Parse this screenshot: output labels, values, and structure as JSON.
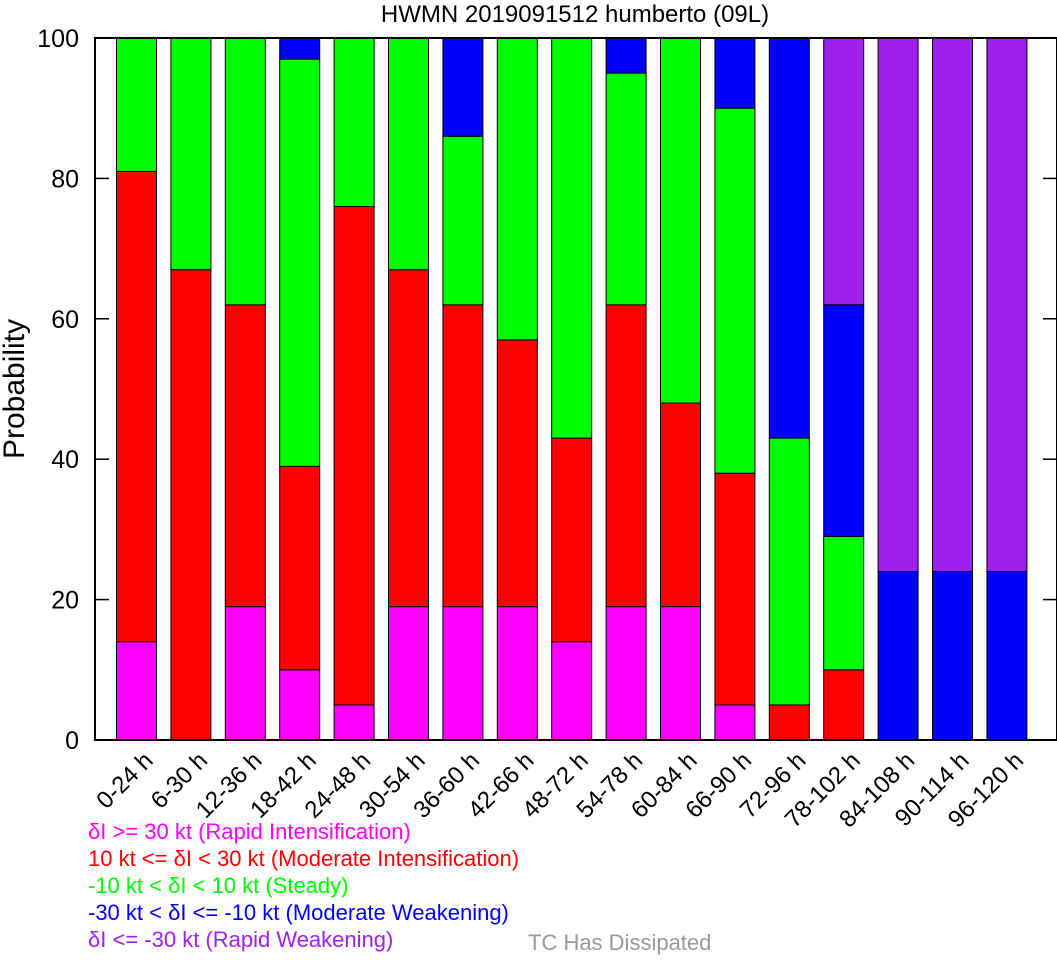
{
  "chart_data": {
    "type": "bar",
    "stacked": true,
    "title": "HWMN 2019091512 humberto (09L)",
    "ylabel": "Probability",
    "xlabel": "",
    "ylim": [
      0,
      100
    ],
    "yticks": [
      0,
      20,
      40,
      60,
      80,
      100
    ],
    "grid": false,
    "categories": [
      "0-24 h",
      "6-30 h",
      "12-36 h",
      "18-42 h",
      "24-48 h",
      "30-54 h",
      "36-60 h",
      "42-66 h",
      "48-72 h",
      "54-78 h",
      "60-84 h",
      "66-90 h",
      "72-96 h",
      "78-102 h",
      "84-108 h",
      "90-114 h",
      "96-120 h"
    ],
    "series": [
      {
        "name": "δI >= 30 kt (Rapid Intensification)",
        "color": "#ff00ff",
        "values": [
          14,
          0,
          19,
          10,
          5,
          19,
          19,
          19,
          14,
          19,
          19,
          5,
          0,
          0,
          0,
          0,
          0
        ]
      },
      {
        "name": "10 kt <= δI < 30 kt (Moderate Intensification)",
        "color": "#ff0000",
        "values": [
          67,
          67,
          43,
          29,
          71,
          48,
          43,
          38,
          29,
          43,
          29,
          33,
          5,
          10,
          0,
          0,
          0
        ]
      },
      {
        "name": "-10 kt < δI < 10 kt (Steady)",
        "color": "#00ff00",
        "values": [
          19,
          33,
          38,
          58,
          24,
          33,
          24,
          43,
          57,
          33,
          52,
          52,
          38,
          19,
          0,
          0,
          0
        ]
      },
      {
        "name": "-30 kt < δI <= -10 kt (Moderate Weakening)",
        "color": "#0000ff",
        "values": [
          0,
          0,
          0,
          3,
          0,
          0,
          14,
          0,
          0,
          5,
          0,
          10,
          57,
          33,
          24,
          24,
          24
        ]
      },
      {
        "name": "δI <= -30 kt (Rapid Weakening)",
        "color": "#a020f0",
        "values": [
          0,
          0,
          0,
          0,
          0,
          0,
          0,
          0,
          0,
          0,
          0,
          0,
          0,
          38,
          76,
          76,
          76
        ]
      }
    ],
    "extra_legend": {
      "label": "TC Has Dissipated",
      "color": "#999999"
    }
  }
}
